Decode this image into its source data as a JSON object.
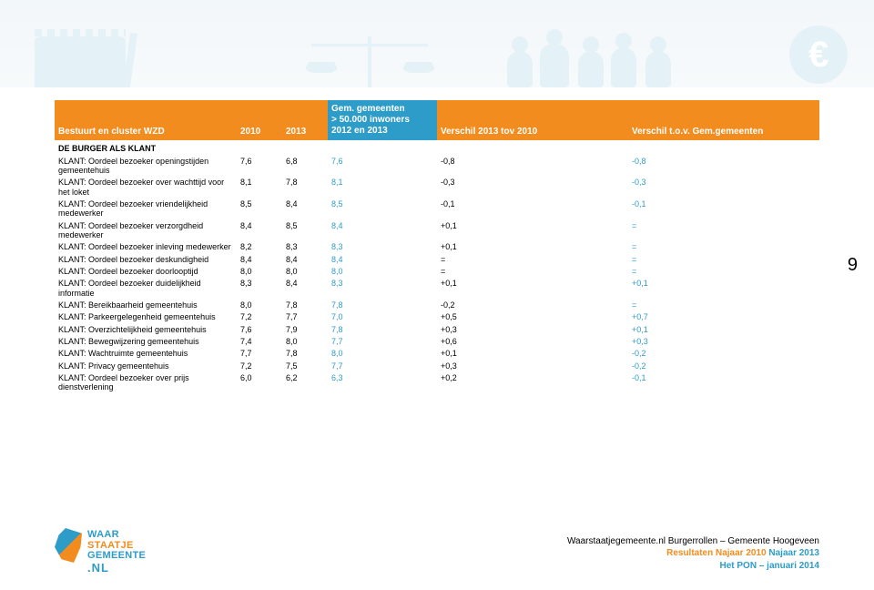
{
  "page_number": "9",
  "colors": {
    "orange": "#f28c1f",
    "blue": "#2d9cc8",
    "text": "#000000",
    "background": "#ffffff"
  },
  "table": {
    "header": {
      "title": "Bestuurt en cluster WZD",
      "col_2010": "2010",
      "col_2013": "2013",
      "col_mid_line1": "Gem. gemeenten",
      "col_mid_line2": "> 50.000 inwoners",
      "col_mid_line3": "2012 en 2013",
      "col_diff1": "Verschil 2013 tov 2010",
      "col_diff2": "Verschil t.o.v. Gem.gemeenten"
    },
    "section_label": "DE BURGER ALS KLANT",
    "columns": [
      "label",
      "v2010",
      "v2013",
      "mid",
      "diff1",
      "diff2"
    ],
    "rows": [
      {
        "label": "KLANT: Oordeel bezoeker openingstijden gemeentehuis",
        "v2010": "7,6",
        "v2013": "6,8",
        "mid": "7,6",
        "diff1": "-0,8",
        "diff2": "-0,8"
      },
      {
        "label": "KLANT: Oordeel bezoeker over wachttijd voor het loket",
        "v2010": "8,1",
        "v2013": "7,8",
        "mid": "8,1",
        "diff1": "-0,3",
        "diff2": "-0,3"
      },
      {
        "label": "KLANT: Oordeel bezoeker vriendelijkheid medewerker",
        "v2010": "8,5",
        "v2013": "8,4",
        "mid": "8,5",
        "diff1": "-0,1",
        "diff2": "-0,1"
      },
      {
        "label": "KLANT: Oordeel bezoeker verzorgdheid medewerker",
        "v2010": "8,4",
        "v2013": "8,5",
        "mid": "8,4",
        "diff1": "+0,1",
        "diff2": "="
      },
      {
        "label": "KLANT: Oordeel bezoeker inleving medewerker",
        "v2010": "8,2",
        "v2013": "8,3",
        "mid": "8,3",
        "diff1": "+0,1",
        "diff2": "="
      },
      {
        "label": "KLANT: Oordeel bezoeker deskundigheid",
        "v2010": "8,4",
        "v2013": "8,4",
        "mid": "8,4",
        "diff1": "=",
        "diff2": "="
      },
      {
        "label": "KLANT: Oordeel bezoeker doorlooptijd",
        "v2010": "8,0",
        "v2013": "8,0",
        "mid": "8,0",
        "diff1": "=",
        "diff2": "="
      },
      {
        "label": "KLANT: Oordeel bezoeker duidelijkheid informatie",
        "v2010": "8,3",
        "v2013": "8,4",
        "mid": "8,3",
        "diff1": "+0,1",
        "diff2": "+0,1"
      },
      {
        "label": "KLANT: Bereikbaarheid gemeentehuis",
        "v2010": "8,0",
        "v2013": "7,8",
        "mid": "7,8",
        "diff1": "-0,2",
        "diff2": "="
      },
      {
        "label": "KLANT: Parkeergelegenheid gemeentehuis",
        "v2010": "7,2",
        "v2013": "7,7",
        "mid": "7,0",
        "diff1": "+0,5",
        "diff2": "+0,7"
      },
      {
        "label": "KLANT: Overzichtelijkheid gemeentehuis",
        "v2010": "7,6",
        "v2013": "7,9",
        "mid": "7,8",
        "diff1": "+0,3",
        "diff2": "+0,1"
      },
      {
        "label": "KLANT: Bewegwijzering gemeentehuis",
        "v2010": "7,4",
        "v2013": "8,0",
        "mid": "7,7",
        "diff1": "+0,6",
        "diff2": "+0,3"
      },
      {
        "label": "KLANT: Wachtruimte gemeentehuis",
        "v2010": "7,7",
        "v2013": "7,8",
        "mid": "8,0",
        "diff1": "+0,1",
        "diff2": "-0,2"
      },
      {
        "label": "KLANT: Privacy gemeentehuis",
        "v2010": "7,2",
        "v2013": "7,5",
        "mid": "7,7",
        "diff1": "+0,3",
        "diff2": "-0,2"
      },
      {
        "label": "KLANT: Oordeel bezoeker over prijs dienstverlening",
        "v2010": "6,0",
        "v2013": "6,2",
        "mid": "6,3",
        "diff1": "+0,2",
        "diff2": "-0,1"
      }
    ]
  },
  "logo": {
    "line1": "WAAR",
    "line2": "STAATJE",
    "line3": "GEMEENTE",
    "line4": ".NL"
  },
  "footer": {
    "line1": "Waarstaatjegemeente.nl Burgerrollen – Gemeente Hoogeveen",
    "line2_a": "Resultaten Najaar 2010",
    "line2_b": " Najaar 2013",
    "line3": "Het PON – januari 2014"
  }
}
